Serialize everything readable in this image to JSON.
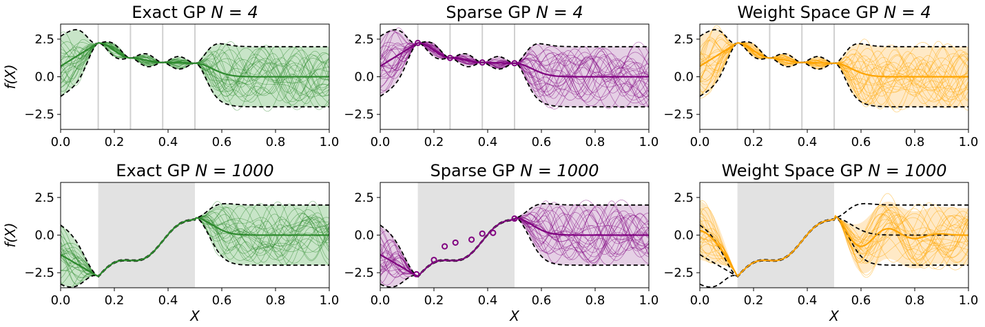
{
  "chart_data": [
    {
      "type": "line",
      "panel": "exact-4",
      "title": "Exact GP N = 4",
      "title_plain": "Exact GP ",
      "title_n": "N = 4",
      "ylabel": "f(X)",
      "xlabel": "",
      "xlim": [
        0,
        1
      ],
      "ylim": [
        -3.5,
        3.5
      ],
      "x_ticks": [
        "0.0",
        "0.2",
        "0.4",
        "0.6",
        "0.8",
        "1.0"
      ],
      "y_ticks": [
        "2.5",
        "0.0",
        "−2.5"
      ],
      "color": "#2e8b2e",
      "fill": "#b5dcb5",
      "observations": [
        0.14,
        0.26,
        0.38,
        0.5
      ],
      "obs_values": [
        2.25,
        1.25,
        0.95,
        0.9
      ],
      "highlight": null,
      "prior_mean": 0,
      "prior_band": 2,
      "samples": 28,
      "mean_kind": "exact",
      "markers": false
    },
    {
      "type": "line",
      "panel": "sparse-4",
      "title": "Sparse GP N = 4",
      "title_plain": "Sparse GP ",
      "title_n": "N = 4",
      "ylabel": "",
      "xlabel": "",
      "xlim": [
        0,
        1
      ],
      "ylim": [
        -3.5,
        3.5
      ],
      "x_ticks": [
        "0.0",
        "0.2",
        "0.4",
        "0.6",
        "0.8",
        "1.0"
      ],
      "y_ticks": [
        "2.5",
        "0.0",
        "−2.5"
      ],
      "color": "#800080",
      "fill": "#dcc0dc",
      "observations": [
        0.14,
        0.26,
        0.38,
        0.5
      ],
      "obs_values": [
        2.25,
        1.25,
        0.95,
        0.9
      ],
      "highlight": null,
      "prior_mean": 0,
      "prior_band": 2,
      "samples": 28,
      "mean_kind": "exact",
      "markers": true
    },
    {
      "type": "line",
      "panel": "weight-4",
      "title": "Weight Space GP N = 4",
      "title_plain": "Weight Space GP ",
      "title_n": "N = 4",
      "ylabel": "",
      "xlabel": "",
      "xlim": [
        0,
        1
      ],
      "ylim": [
        -3.5,
        3.5
      ],
      "x_ticks": [
        "0.0",
        "0.2",
        "0.4",
        "0.6",
        "0.8",
        "1.0"
      ],
      "y_ticks": [
        "2.5",
        "0.0",
        "−2.5"
      ],
      "color": "#ffa500",
      "fill": "#ffe2b3",
      "observations": [
        0.14,
        0.26,
        0.38,
        0.5
      ],
      "obs_values": [
        2.25,
        1.25,
        0.95,
        0.9
      ],
      "highlight": null,
      "prior_mean": 0,
      "prior_band": 2,
      "samples": 28,
      "mean_kind": "exact",
      "markers": false
    },
    {
      "type": "line",
      "panel": "exact-1000",
      "title": "Exact GP N = 1000",
      "title_plain": "Exact GP ",
      "title_n": "N = 1000",
      "ylabel": "f(X)",
      "xlabel": "X",
      "xlim": [
        0,
        1
      ],
      "ylim": [
        -3.5,
        3.5
      ],
      "x_ticks": [
        "0.0",
        "0.2",
        "0.4",
        "0.6",
        "0.8",
        "1.0"
      ],
      "y_ticks": [
        "2.5",
        "0.0",
        "−2.5"
      ],
      "color": "#2e8b2e",
      "fill": "#b5dcb5",
      "observations": [],
      "obs_values": [],
      "highlight": [
        0.14,
        0.5
      ],
      "prior_mean": 0,
      "prior_band": 2,
      "samples": 28,
      "mean_kind": "dense",
      "markers": false
    },
    {
      "type": "line",
      "panel": "sparse-1000",
      "title": "Sparse GP N = 1000",
      "title_plain": "Sparse GP ",
      "title_n": "N = 1000",
      "ylabel": "",
      "xlabel": "X",
      "xlim": [
        0,
        1
      ],
      "ylim": [
        -3.5,
        3.5
      ],
      "x_ticks": [
        "0.0",
        "0.2",
        "0.4",
        "0.6",
        "0.8",
        "1.0"
      ],
      "y_ticks": [
        "2.5",
        "0.0",
        "−2.5"
      ],
      "color": "#800080",
      "fill": "#dcc0dc",
      "observations": [],
      "obs_values": [],
      "highlight": [
        0.14,
        0.5
      ],
      "prior_mean": 0,
      "prior_band": 2,
      "samples": 28,
      "mean_kind": "sparse",
      "markers": true,
      "inducing_x": [
        0.135,
        0.2,
        0.24,
        0.28,
        0.34,
        0.38,
        0.42,
        0.5
      ],
      "inducing_y": [
        -2.6,
        -1.65,
        -0.75,
        -0.5,
        -0.3,
        0.1,
        0.15,
        1.1
      ]
    },
    {
      "type": "line",
      "panel": "weight-1000",
      "title": "Weight Space GP N = 1000",
      "title_plain": "Weight Space GP ",
      "title_n": "N = 1000",
      "ylabel": "",
      "xlabel": "X",
      "xlim": [
        0,
        1
      ],
      "ylim": [
        -3.5,
        3.5
      ],
      "x_ticks": [
        "0.0",
        "0.2",
        "0.4",
        "0.6",
        "0.8",
        "1.0"
      ],
      "y_ticks": [
        "2.5",
        "0.0",
        "−2.5"
      ],
      "color": "#ffa500",
      "fill": "#ffe2b3",
      "observations": [],
      "obs_values": [],
      "highlight": [
        0.14,
        0.5
      ],
      "prior_mean": 0,
      "prior_band": 2,
      "samples": 28,
      "mean_kind": "weight",
      "markers": false
    }
  ]
}
